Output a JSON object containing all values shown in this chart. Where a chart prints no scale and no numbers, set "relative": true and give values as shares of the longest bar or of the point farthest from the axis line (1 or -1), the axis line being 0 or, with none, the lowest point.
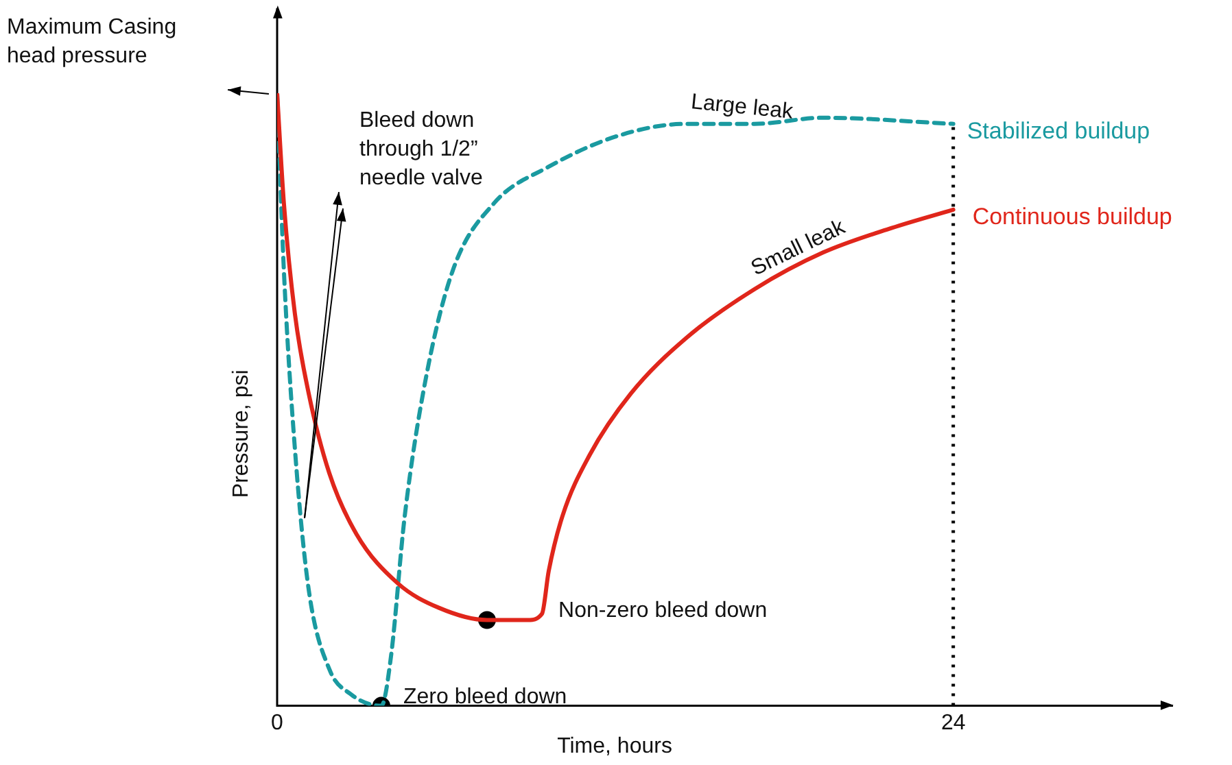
{
  "chart_data": {
    "type": "line",
    "relative": true,
    "xlabel": "Time, hours",
    "ylabel": "Pressure, psi",
    "xlim": [
      0,
      31.8
    ],
    "xticks": [
      0,
      24
    ],
    "grid": false,
    "legend": false,
    "marker": "none",
    "series": [
      {
        "color": "#e0261b",
        "line_style": "solid",
        "x": [
          0,
          0.24,
          0.63,
          1.12,
          1.85,
          2.82,
          4.28,
          5.74,
          7.45,
          8.91,
          9.4,
          9.64,
          10.13,
          11.1,
          12.56,
          14.51,
          16.94,
          19.38,
          21.81,
          24
        ],
        "values": [
          1,
          0.82,
          0.64,
          0.51,
          0.38,
          0.28,
          0.2,
          0.16,
          0.14,
          0.14,
          0.15,
          0.22,
          0.31,
          0.41,
          0.51,
          0.6,
          0.68,
          0.74,
          0.78,
          0.81
        ]
      },
      {
        "color": "#1a9aa0",
        "line_style": "dashed",
        "x": [
          0,
          0.24,
          0.63,
          1.12,
          1.85,
          2.58,
          3.7,
          4.04,
          4.53,
          5.26,
          6.23,
          7.69,
          9.64,
          12.07,
          14.51,
          16.94,
          19.38,
          24
        ],
        "values": [
          1,
          0.71,
          0.42,
          0.19,
          0.06,
          0.02,
          0,
          0.08,
          0.31,
          0.53,
          0.71,
          0.82,
          0.88,
          0.93,
          0.95,
          0.95,
          0.96,
          0.95
        ]
      },
      {
        "type": "scatter",
        "color": "#000000",
        "marker": "circle",
        "x": [
          3.7,
          7.45
        ],
        "values": [
          0,
          0.14
        ]
      }
    ],
    "ref_lines": [
      {
        "axis": "x",
        "value": 24,
        "color": "#000000",
        "line_style": "dotted"
      }
    ],
    "annotations": [
      "Maximum Casing\nhead pressure",
      "Bleed down\nthrough 1/2”\nneedle valve",
      {
        "text": "Large leak",
        "x": 16.5,
        "y": 0.95
      },
      {
        "text": "Small leak",
        "x": 18.5,
        "y": 0.72
      },
      {
        "text": "Stabilized buildup",
        "x": 24,
        "y": 0.95
      },
      {
        "text": "Continuous buildup",
        "x": 24,
        "y": 0.81
      },
      {
        "text": "Non-zero bleed down",
        "x": 9.4,
        "y": 0.15
      },
      {
        "text": "Zero bleed down",
        "x": 3.7,
        "y": 0
      }
    ]
  }
}
